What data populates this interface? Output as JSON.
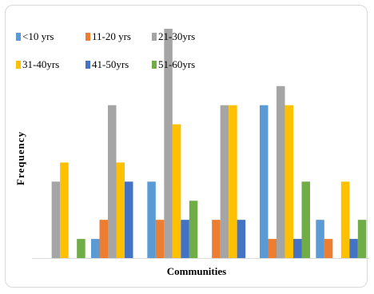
{
  "chart_data": {
    "type": "bar",
    "title": "",
    "xlabel": "Communities",
    "ylabel": "Frequency",
    "categories": [
      "",
      "",
      "",
      "",
      "",
      ""
    ],
    "ylim": [
      0,
      12
    ],
    "grid": false,
    "legend_position": "top-left",
    "series": [
      {
        "name": "<10 yrs",
        "color": "#5B9BD5",
        "values": [
          0,
          1,
          4,
          0,
          8,
          2
        ]
      },
      {
        "name": "11-20 yrs",
        "color": "#ED7D31",
        "values": [
          0,
          2,
          2,
          2,
          1,
          1
        ]
      },
      {
        "name": "21-30yrs",
        "color": "#A5A5A5",
        "values": [
          4,
          8,
          12,
          8,
          9,
          0
        ]
      },
      {
        "name": "31-40yrs",
        "color": "#FFC000",
        "values": [
          5,
          5,
          7,
          8,
          8,
          4
        ]
      },
      {
        "name": "41-50yrs",
        "color": "#4472C4",
        "values": [
          0,
          4,
          2,
          2,
          1,
          1
        ]
      },
      {
        "name": "51-60yrs",
        "color": "#70AD47",
        "values": [
          1,
          0,
          3,
          0,
          4,
          2
        ]
      }
    ]
  }
}
